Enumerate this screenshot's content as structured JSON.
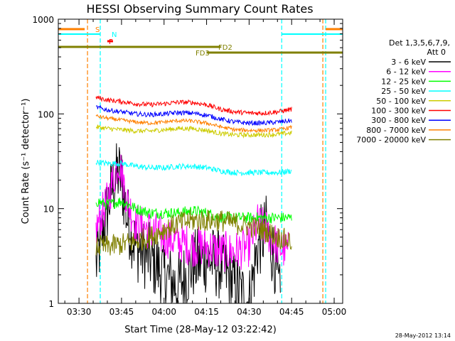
{
  "chart_data": {
    "type": "line",
    "title": "HESSI Observing Summary Count Rates",
    "xlabel": "Start Time (28-May-12 03:22:42)",
    "ylabel": "Count Rate (s⁻¹ detector⁻¹)",
    "y_scale": "log",
    "xlim": [
      "03:22:42",
      "05:03:00"
    ],
    "ylim": [
      1,
      1000
    ],
    "x_ticks": [
      "03:30",
      "03:45",
      "04:00",
      "04:15",
      "04:30",
      "04:45",
      "05:00"
    ],
    "y_ticks": [
      "1",
      "10",
      "100",
      "1000"
    ],
    "legend_title": "Det 1,3,5,6,7,9,",
    "legend_subtitle": "Att 0",
    "legend_position": "right",
    "series": [
      {
        "name": "3 - 6 keV",
        "color": "#000000",
        "x": [
          "03:36",
          "03:38",
          "03:40",
          "03:42",
          "03:44",
          "03:45",
          "03:47",
          "03:50",
          "03:55",
          "04:00",
          "04:05",
          "04:10",
          "04:15",
          "04:20",
          "04:25",
          "04:30",
          "04:33",
          "04:36",
          "04:39",
          "04:41"
        ],
        "y": [
          2.5,
          5,
          10,
          18,
          24,
          20,
          8,
          4,
          3,
          2,
          1.5,
          2.5,
          3,
          2.5,
          1.5,
          1,
          4,
          6,
          3,
          1
        ]
      },
      {
        "name": "6 - 12 keV",
        "color": "#ff00ff",
        "x": [
          "03:36",
          "03:40",
          "03:42",
          "03:44",
          "03:45",
          "03:47",
          "03:50",
          "03:55",
          "04:00",
          "04:05",
          "04:10",
          "04:15",
          "04:20",
          "04:25",
          "04:30",
          "04:33",
          "04:36",
          "04:40",
          "04:44"
        ],
        "y": [
          6,
          12,
          20,
          32,
          25,
          12,
          7,
          6,
          5,
          4.5,
          4,
          4,
          3.5,
          3.5,
          4,
          7,
          6,
          4,
          3.5
        ]
      },
      {
        "name": "12 - 25 keV",
        "color": "#00ff00",
        "x": [
          "03:36",
          "03:40",
          "03:45",
          "03:50",
          "03:55",
          "04:00",
          "04:05",
          "04:10",
          "04:15",
          "04:20",
          "04:25",
          "04:30",
          "04:35",
          "04:40",
          "04:45"
        ],
        "y": [
          12,
          11,
          12,
          10,
          9,
          9,
          9,
          9.5,
          9,
          8,
          8,
          8,
          8,
          8,
          8
        ]
      },
      {
        "name": "25 - 50 keV",
        "color": "#00ffff",
        "x": [
          "03:36",
          "03:40",
          "03:45",
          "03:50",
          "03:55",
          "04:00",
          "04:05",
          "04:10",
          "04:15",
          "04:20",
          "04:25",
          "04:30",
          "04:35",
          "04:40",
          "04:45"
        ],
        "y": [
          31,
          30,
          30,
          28,
          27,
          27,
          28,
          28,
          27,
          25,
          24,
          24,
          24,
          24,
          25
        ]
      },
      {
        "name": "50 - 100 keV",
        "color": "#cccc00",
        "x": [
          "03:36",
          "03:40",
          "03:45",
          "03:50",
          "03:55",
          "04:00",
          "04:05",
          "04:10",
          "04:15",
          "04:20",
          "04:25",
          "04:30",
          "04:35",
          "04:40",
          "04:45"
        ],
        "y": [
          73,
          70,
          68,
          66,
          66,
          68,
          70,
          70,
          67,
          62,
          60,
          60,
          60,
          61,
          63
        ]
      },
      {
        "name": "100 - 300 keV",
        "color": "#ff0000",
        "x": [
          "03:36",
          "03:40",
          "03:45",
          "03:50",
          "03:55",
          "04:00",
          "04:05",
          "04:10",
          "04:15",
          "04:20",
          "04:25",
          "04:30",
          "04:35",
          "04:40",
          "04:45"
        ],
        "y": [
          150,
          140,
          135,
          128,
          125,
          128,
          133,
          132,
          125,
          112,
          105,
          102,
          102,
          105,
          112
        ]
      },
      {
        "name": "300 - 800 keV",
        "color": "#0000ff",
        "x": [
          "03:36",
          "03:40",
          "03:45",
          "03:50",
          "03:55",
          "04:00",
          "04:05",
          "04:10",
          "04:15",
          "04:20",
          "04:25",
          "04:30",
          "04:35",
          "04:40",
          "04:45"
        ],
        "y": [
          118,
          110,
          105,
          100,
          98,
          100,
          103,
          102,
          97,
          88,
          82,
          80,
          80,
          82,
          85
        ]
      },
      {
        "name": "800 - 7000 keV",
        "color": "#ff8000",
        "x": [
          "03:36",
          "03:40",
          "03:45",
          "03:50",
          "03:55",
          "04:00",
          "04:05",
          "04:10",
          "04:15",
          "04:20",
          "04:25",
          "04:30",
          "04:35",
          "04:40",
          "04:45"
        ],
        "y": [
          95,
          90,
          86,
          82,
          80,
          82,
          85,
          84,
          80,
          73,
          68,
          67,
          67,
          68,
          72
        ]
      },
      {
        "name": "7000 - 20000 keV",
        "color": "#808000",
        "x": [
          "03:36",
          "03:40",
          "03:45",
          "03:50",
          "03:55",
          "04:00",
          "04:05",
          "04:10",
          "04:15",
          "04:20",
          "04:25",
          "04:30",
          "04:35",
          "04:40",
          "04:45"
        ],
        "y": [
          4,
          4,
          4.2,
          4.5,
          5,
          6,
          7,
          7.5,
          7.5,
          7.5,
          7,
          6.5,
          6,
          5,
          4.5
        ]
      }
    ],
    "flag_bars": [
      {
        "label": "S",
        "color": "#ff8000",
        "segments": [
          [
            "03:22:42",
            "03:32"
          ],
          [
            "04:57",
            "05:03"
          ]
        ]
      },
      {
        "label": "N",
        "color": "#00ffff",
        "segments": [
          [
            "03:22:42",
            "03:37:30"
          ],
          [
            "04:41:30",
            "05:03"
          ]
        ]
      },
      {
        "label": "F",
        "color": "#ff0000",
        "segments": [
          [
            "03:40",
            "03:42"
          ]
        ]
      },
      {
        "label": "FD2",
        "color": "#808000",
        "segments": [
          [
            "03:22:42",
            "04:20"
          ]
        ]
      },
      {
        "label": "FD3",
        "color": "#808000",
        "segments": [
          [
            "04:15",
            "05:03"
          ]
        ]
      }
    ],
    "vertical_lines": [
      {
        "x": "03:33",
        "color": "#ff8000"
      },
      {
        "x": "03:37:30",
        "color": "#00ffff"
      },
      {
        "x": "04:41:30",
        "color": "#00ffff"
      },
      {
        "x": "04:56",
        "color": "#ff8000"
      },
      {
        "x": "04:57",
        "color": "#00ffff"
      }
    ]
  },
  "footer": {
    "timestamp": "28-May-2012 13:14"
  }
}
